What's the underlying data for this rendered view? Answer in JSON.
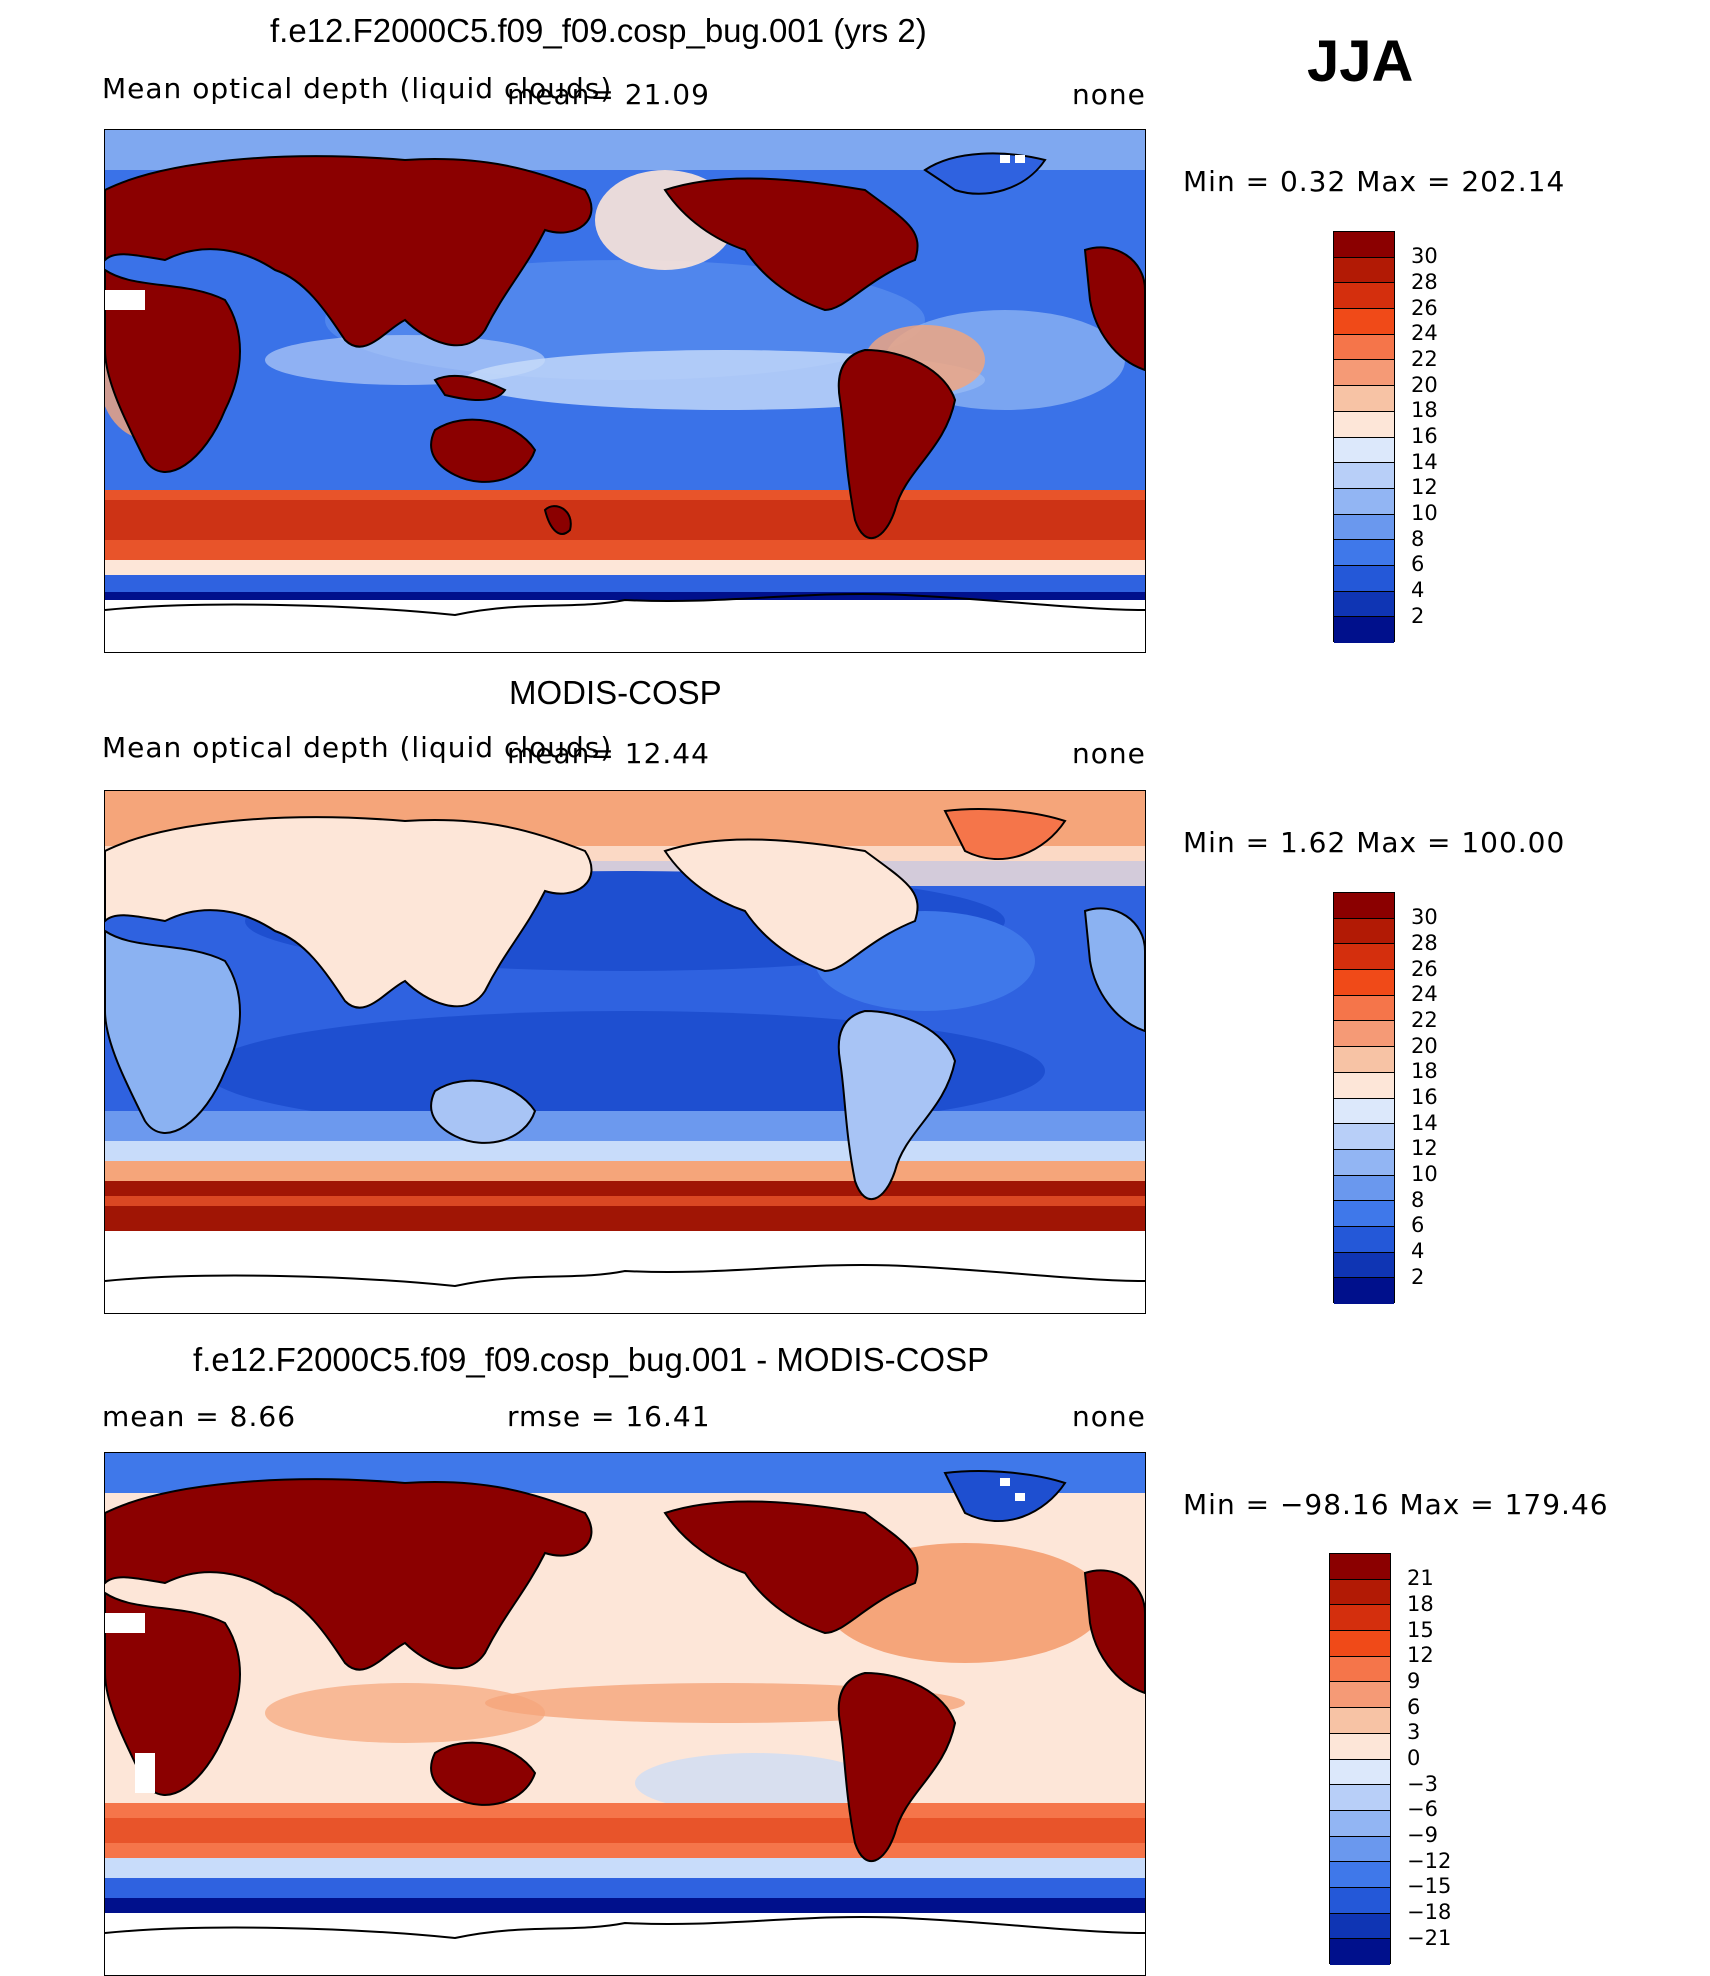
{
  "season": "JJA",
  "colors": {
    "deep_blue": "#00108c",
    "mid_blue": "#2f62e0",
    "light_blue": "#c8dcfa",
    "pale": "#fde6d8",
    "orange": "#f5754a",
    "dark_red": "#8b0000"
  },
  "panels": [
    {
      "title": "f.e12.F2000C5.f09_f09.cosp_bug.001 (yrs 2)",
      "left_text": "Mean optical depth (liquid clouds)",
      "mean_text": "mean=  21.09",
      "units": "none",
      "minmax": "Min =    0.32  Max  =  202.14",
      "colorbar": [
        "30",
        "28",
        "26",
        "24",
        "22",
        "20",
        "18",
        "16",
        "14",
        "12",
        "10",
        "8",
        "6",
        "4",
        "2"
      ],
      "variant": "model"
    },
    {
      "title": "MODIS-COSP",
      "left_text": "Mean optical depth (liquid clouds)",
      "mean_text": "mean=  12.44",
      "units": "none",
      "minmax": "Min =    1.62  Max  =  100.00",
      "colorbar": [
        "30",
        "28",
        "26",
        "24",
        "22",
        "20",
        "18",
        "16",
        "14",
        "12",
        "10",
        "8",
        "6",
        "4",
        "2"
      ],
      "variant": "obs"
    },
    {
      "title": "f.e12.F2000C5.f09_f09.cosp_bug.001 - MODIS-COSP",
      "left_text": "mean =     8.66",
      "mean_text": "rmse =     16.41",
      "units": "none",
      "minmax": "Min = −98.16  Max  =  179.46",
      "colorbar": [
        "21",
        "18",
        "15",
        "12",
        "9",
        "6",
        "3",
        "0",
        "−3",
        "−6",
        "−9",
        "−12",
        "−15",
        "−18",
        "−21"
      ],
      "variant": "diff"
    }
  ]
}
